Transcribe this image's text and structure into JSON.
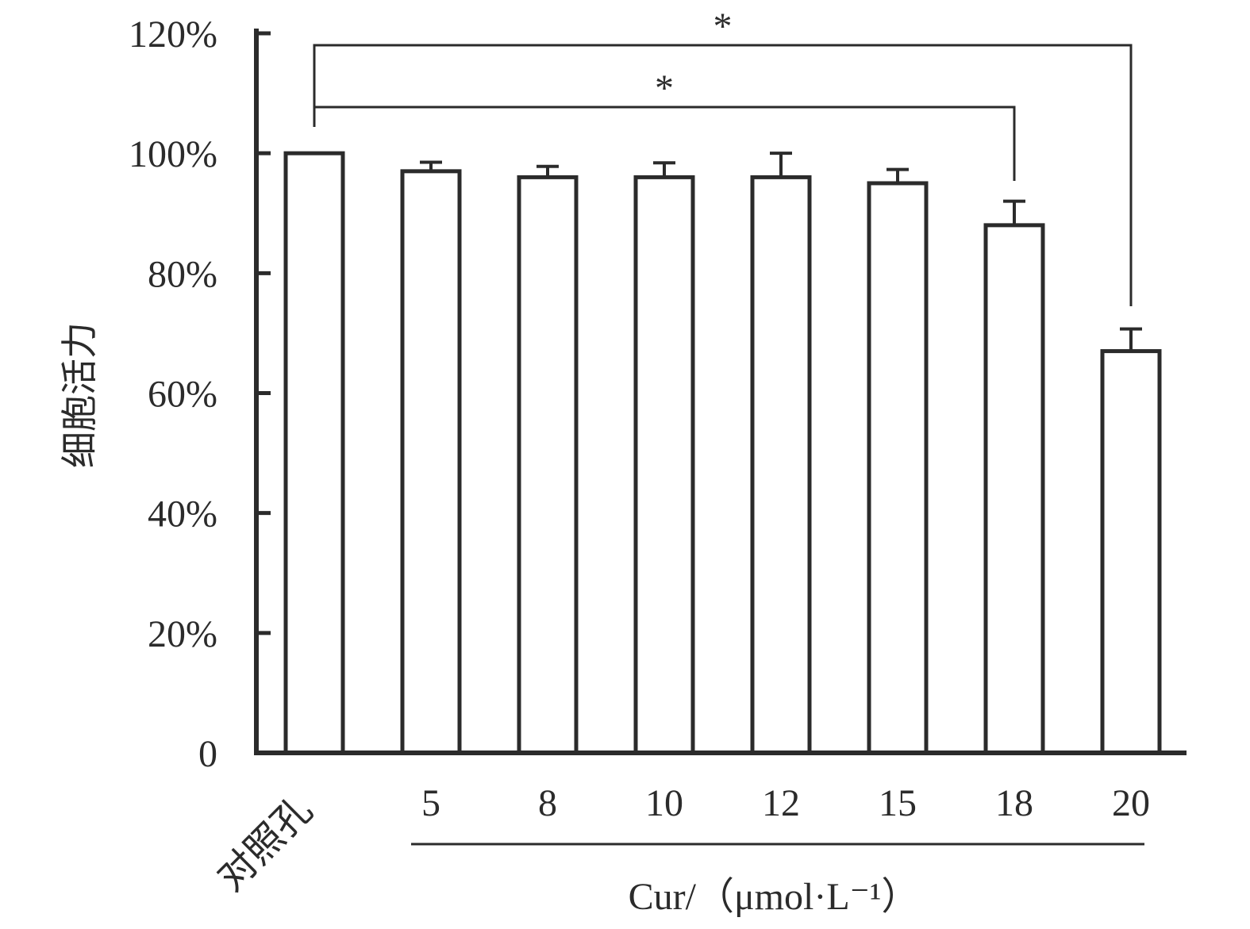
{
  "chart_data": {
    "type": "bar",
    "categories": [
      "对照孔",
      "5",
      "8",
      "10",
      "12",
      "15",
      "18",
      "20"
    ],
    "values": [
      100,
      97,
      96,
      96,
      96,
      95,
      88,
      67
    ],
    "error": [
      0,
      1.5,
      1.8,
      2.4,
      4.0,
      2.3,
      4.0,
      3.7
    ],
    "ylabel": "细胞活力",
    "group_label": "Cur/（μmol·L⁻¹）",
    "ylim": [
      0,
      120
    ],
    "yticks": [
      0,
      20,
      40,
      60,
      80,
      100,
      120
    ],
    "ytick_labels": [
      "0",
      "20%",
      "40%",
      "60%",
      "80%",
      "100%",
      "120%"
    ],
    "grid": false,
    "significance": [
      {
        "from": "对照孔",
        "to": "18",
        "label": "*"
      },
      {
        "from": "对照孔",
        "to": "20",
        "label": "*"
      }
    ],
    "colors": {
      "bar_fill": "#ffffff",
      "stroke": "#2b2b2b"
    }
  }
}
